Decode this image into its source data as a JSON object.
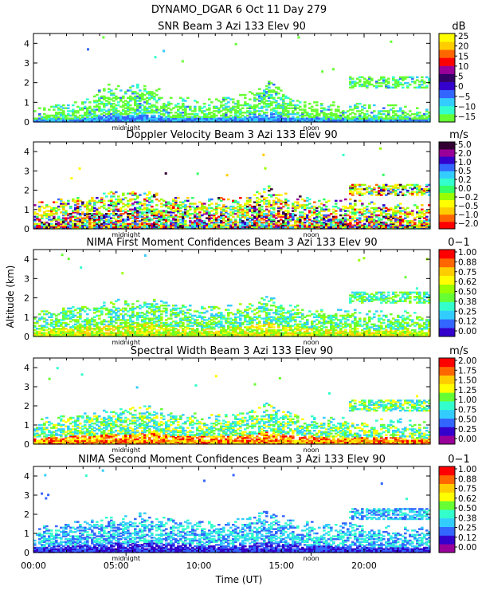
{
  "figure_title": "DYNAMO_DGAR    6 Oct 11 Day 279",
  "xlabel": "Time (UT)",
  "ylabel": "Altitude (km)",
  "xticks": [
    "00:00",
    "05:00",
    "10:00",
    "15:00",
    "20:00"
  ],
  "markers": [
    "midnight",
    "noon"
  ],
  "chart_data": [
    {
      "type": "heatmap",
      "title": "SNR Beam 3 Azi 133 Elev 90",
      "unit": "dB",
      "colorbar_ticks": [
        "25",
        "20",
        "15",
        "10",
        "5",
        "0",
        "−5",
        "−10",
        "−15"
      ],
      "xlim": [
        0,
        24
      ],
      "ylim": [
        0,
        4.5
      ],
      "yticks": [
        "0",
        "1",
        "2",
        "3",
        "4"
      ],
      "colors": [
        "#66ff33",
        "#33ccff",
        "#66ff33"
      ],
      "profile_top_km": [
        0.4,
        0.45,
        0.5,
        0.55,
        0.6,
        0.7,
        0.8,
        1.0,
        1.4,
        1.6,
        1.5,
        1.4,
        1.6,
        1.7,
        1.6,
        1.3,
        1.0,
        0.9,
        0.9,
        0.85,
        0.85,
        0.9,
        0.9,
        0.9,
        1.0,
        1.1,
        1.3,
        1.6,
        1.8,
        1.5,
        1.0,
        0.9,
        0.85,
        0.8,
        0.75,
        0.7,
        0.7,
        0.65,
        0.6,
        0.6,
        0.55,
        0.6,
        0.6,
        0.6,
        0.55,
        0.5,
        0.5,
        0.45
      ]
    },
    {
      "type": "heatmap",
      "title": "Doppler Velocity Beam 3 Azi 133 Elev 90",
      "unit": "m/s",
      "colorbar_ticks": [
        "5.0",
        "2.0",
        "1.0",
        "0.5",
        "0.2",
        "0.0",
        "−0.2",
        "−0.5",
        "−1.0",
        "−2.0"
      ],
      "xlim": [
        0,
        24
      ],
      "ylim": [
        0,
        4.5
      ],
      "yticks": [
        "0",
        "1",
        "2",
        "3",
        "4"
      ],
      "profile_top_km": [
        1.0,
        1.1,
        1.2,
        1.2,
        1.3,
        1.3,
        1.4,
        1.4,
        1.5,
        1.6,
        1.6,
        1.5,
        1.6,
        1.7,
        1.6,
        1.5,
        1.4,
        1.3,
        1.3,
        1.3,
        1.2,
        1.2,
        1.3,
        1.3,
        1.3,
        1.4,
        1.5,
        1.7,
        1.9,
        1.7,
        1.5,
        1.4,
        1.3,
        1.3,
        1.2,
        1.2,
        1.2,
        1.2,
        1.2,
        1.1,
        1.1,
        1.1,
        1.1,
        1.1,
        1.1,
        1.0,
        1.0,
        1.0
      ]
    },
    {
      "type": "heatmap",
      "title": "NIMA First Moment Confidences Beam 3 Azi 133 Elev 90",
      "unit": "0−1",
      "colorbar_ticks": [
        "1.00",
        "0.88",
        "0.75",
        "0.62",
        "0.50",
        "0.38",
        "0.25",
        "0.12",
        "0.00"
      ],
      "xlim": [
        0,
        24
      ],
      "ylim": [
        0,
        4.5
      ],
      "yticks": [
        "0",
        "1",
        "2",
        "3",
        "4"
      ],
      "profile_top_km": [
        0.9,
        1.0,
        1.1,
        1.1,
        1.2,
        1.2,
        1.3,
        1.3,
        1.4,
        1.5,
        1.6,
        1.5,
        1.6,
        1.7,
        1.7,
        1.5,
        1.4,
        1.3,
        1.3,
        1.3,
        1.2,
        1.2,
        1.2,
        1.3,
        1.3,
        1.4,
        1.5,
        1.7,
        1.8,
        1.6,
        1.4,
        1.3,
        1.2,
        1.2,
        1.1,
        1.1,
        1.1,
        1.1,
        1.1,
        1.0,
        1.0,
        1.0,
        1.0,
        1.0,
        1.0,
        0.9,
        0.9,
        0.9
      ]
    },
    {
      "type": "heatmap",
      "title": "Spectral Width Beam 3 Azi 133 Elev 90",
      "unit": "m/s",
      "colorbar_ticks": [
        "2.00",
        "1.75",
        "1.50",
        "1.25",
        "1.00",
        "0.75",
        "0.50",
        "0.25",
        "0.00"
      ],
      "xlim": [
        0,
        24
      ],
      "ylim": [
        0,
        4.5
      ],
      "yticks": [
        "0",
        "1",
        "2",
        "3",
        "4"
      ],
      "profile_top_km": [
        0.9,
        1.0,
        1.1,
        1.1,
        1.2,
        1.2,
        1.3,
        1.3,
        1.4,
        1.5,
        1.6,
        1.5,
        1.6,
        1.7,
        1.7,
        1.5,
        1.4,
        1.3,
        1.3,
        1.3,
        1.2,
        1.2,
        1.2,
        1.3,
        1.3,
        1.4,
        1.5,
        1.7,
        1.9,
        1.6,
        1.4,
        1.3,
        1.2,
        1.2,
        1.1,
        1.1,
        1.1,
        1.1,
        1.1,
        1.0,
        1.0,
        1.0,
        1.0,
        1.0,
        1.0,
        0.9,
        0.9,
        0.9
      ]
    },
    {
      "type": "heatmap",
      "title": "NIMA Second Moment Confidences Beam 3 Azi 133 Elev 90",
      "unit": "0−1",
      "colorbar_ticks": [
        "1.00",
        "0.88",
        "0.75",
        "0.62",
        "0.50",
        "0.38",
        "0.25",
        "0.12",
        "0.00"
      ],
      "xlim": [
        0,
        24
      ],
      "ylim": [
        0,
        4.5
      ],
      "yticks": [
        "0",
        "1",
        "2",
        "3",
        "4"
      ],
      "profile_top_km": [
        1.0,
        1.1,
        1.2,
        1.2,
        1.3,
        1.3,
        1.4,
        1.4,
        1.5,
        1.6,
        1.7,
        1.6,
        1.7,
        1.8,
        1.7,
        1.6,
        1.5,
        1.4,
        1.4,
        1.4,
        1.3,
        1.3,
        1.3,
        1.3,
        1.4,
        1.5,
        1.6,
        1.8,
        1.9,
        1.7,
        1.5,
        1.4,
        1.3,
        1.3,
        1.2,
        1.2,
        1.2,
        1.2,
        1.2,
        1.1,
        1.1,
        1.1,
        1.1,
        1.1,
        1.1,
        1.0,
        1.0,
        1.0
      ]
    }
  ]
}
